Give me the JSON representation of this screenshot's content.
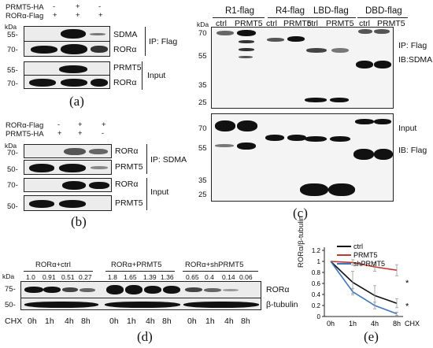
{
  "panel_a": {
    "letter": "(a)",
    "row1_label": "PRMT5-HA",
    "row1_signs": [
      "-",
      "+",
      "-"
    ],
    "row2_label": "RORα-Flag",
    "row2_signs": [
      "+",
      "+",
      "+"
    ],
    "kda": "kDa",
    "blots": [
      {
        "mw": "55-",
        "label": "SDMA"
      },
      {
        "mw": "70-",
        "label": "RORα"
      },
      {
        "mw": "55-",
        "label": "PRMT5"
      },
      {
        "mw": "70-",
        "label": "RORα"
      }
    ],
    "ip_label": "IP: Flag",
    "input_label": "Input"
  },
  "panel_b": {
    "letter": "(b)",
    "row1_label": "RORα-Flag",
    "row1_signs": [
      "-",
      "+",
      "+"
    ],
    "row2_label": "PRMT5-HA",
    "row2_signs": [
      "+",
      "+",
      "-"
    ],
    "kda": "kDa",
    "blots": [
      {
        "mw": "70-",
        "label": "RORα"
      },
      {
        "mw": "50-",
        "label": "PRMT5"
      },
      {
        "mw": "70-",
        "label": "RORα"
      },
      {
        "mw": "50-",
        "label": "PRMT5"
      }
    ],
    "ip_label": "IP: SDMA",
    "input_label": "Input"
  },
  "panel_c": {
    "letter": "(c)",
    "kda": "kDa",
    "constructs": [
      "R1-flag",
      "R4-flag",
      "LBD-flag",
      "DBD-flag"
    ],
    "lane_labels": [
      "ctrl",
      "PRMT5"
    ],
    "top_mw": [
      "70",
      "55",
      "35",
      "25"
    ],
    "bottom_mw": [
      "70",
      "55",
      "35",
      "25"
    ],
    "top_labels": [
      "IP: Flag",
      "IB:SDMA"
    ],
    "bottom_labels": [
      "Input",
      "IB: Flag"
    ]
  },
  "panel_d": {
    "letter": "(d)",
    "kda": "kDa",
    "groups": [
      {
        "name": "RORα+ctrl",
        "values": [
          "1.0",
          "0.91",
          "0.51",
          "0.27"
        ]
      },
      {
        "name": "RORα+PRMT5",
        "values": [
          "1.8",
          "1.65",
          "1.39",
          "1.36"
        ]
      },
      {
        "name": "RORα+shPRMT5",
        "values": [
          "0.65",
          "0.4",
          "0.14",
          "0.06"
        ]
      }
    ],
    "mw": [
      "75-",
      "50-"
    ],
    "labels": [
      "RORα",
      "β-tubulin"
    ],
    "chx_label": "CHX",
    "times": [
      "0h",
      "1h",
      "4h",
      "8h"
    ]
  },
  "panel_e": {
    "letter": "(e)",
    "chart_data": {
      "type": "line",
      "x": [
        "0h",
        "1h",
        "4h",
        "8h"
      ],
      "xlabel": "CHX",
      "ylabel": "RORα/β-tubulin",
      "ylim": [
        0,
        1.2
      ],
      "yticks": [
        "0",
        "0.2",
        "0.4",
        "0.6",
        "0.8",
        "1",
        "1.2"
      ],
      "series": [
        {
          "name": "ctrl",
          "color": "#111111",
          "values": [
            1.0,
            0.62,
            0.38,
            0.24
          ],
          "err": [
            0,
            0.2,
            0.18,
            0.08
          ]
        },
        {
          "name": "PRMT5",
          "color": "#c0392b",
          "values": [
            1.0,
            0.98,
            0.9,
            0.84
          ],
          "err": [
            0,
            0.05,
            0.08,
            0.1
          ]
        },
        {
          "name": "shPRMT5",
          "color": "#3a78c2",
          "values": [
            1.0,
            0.45,
            0.2,
            0.05
          ],
          "err": [
            0,
            0.06,
            0.06,
            0.03
          ]
        }
      ],
      "annotations": [
        "*",
        "*"
      ]
    }
  }
}
